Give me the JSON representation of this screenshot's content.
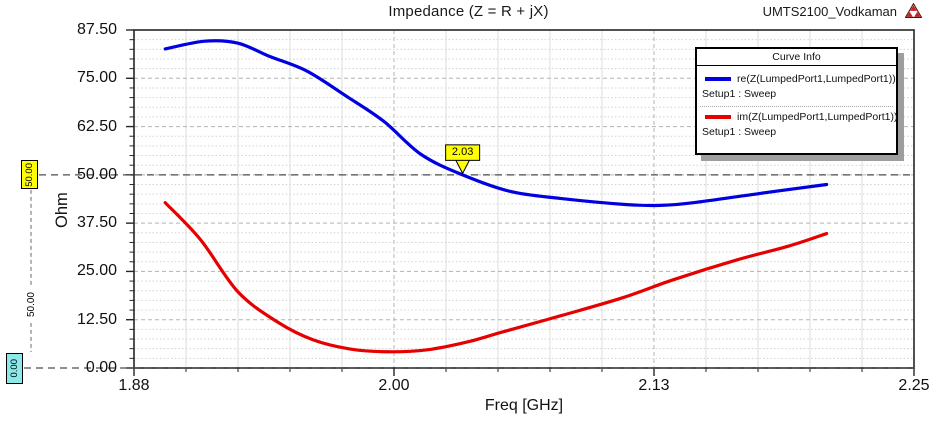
{
  "header": {
    "title": "Impedance (Z = R + jX)",
    "project_name": "UMTS2100_Vodkaman",
    "logo": "ansoft-triangle-logo"
  },
  "legend": {
    "title": "Curve Info",
    "entries": [
      {
        "label": "re(Z(LumpedPort1,LumpedPort1))",
        "sublabel": "Setup1 : Sweep",
        "color": "#0000e0"
      },
      {
        "label": "im(Z(LumpedPort1,LumpedPort1))",
        "sublabel": "Setup1 : Sweep",
        "color": "#e60000"
      }
    ]
  },
  "chart_data": {
    "type": "line",
    "title": "Impedance (Z = R + jX)",
    "xlabel": "Freq [GHz]",
    "ylabel": "Ohm",
    "xlim": [
      1.875,
      2.25
    ],
    "ylim": [
      0,
      87.5
    ],
    "x_tick_values": [
      1.875,
      2.0,
      2.125,
      2.25
    ],
    "x_tick_labels": [
      "1.88",
      "2.00",
      "2.13",
      "2.25"
    ],
    "y_tick_values": [
      0,
      12.5,
      25,
      37.5,
      50,
      62.5,
      75,
      87.5
    ],
    "y_tick_labels": [
      "0.00",
      "12.50",
      "25.00",
      "37.50",
      "50.00",
      "62.50",
      "75.00",
      "87.50"
    ],
    "x_minor_step": 0.025,
    "y_minor_step": 2.5,
    "grid": true,
    "legend_position": "top-right",
    "series": [
      {
        "name": "re(Z(LumpedPort1,LumpedPort1))",
        "color": "#0000e0",
        "x": [
          1.89,
          1.909,
          1.925,
          1.94,
          1.958,
          1.977,
          1.995,
          2.013,
          2.033,
          2.056,
          2.08,
          2.112,
          2.128,
          2.144,
          2.176,
          2.208
        ],
        "y": [
          82.6,
          84.6,
          84.1,
          80.7,
          76.9,
          70.4,
          63.9,
          55.3,
          50.0,
          45.7,
          43.9,
          42.3,
          42.1,
          42.8,
          45.2,
          47.5
        ]
      },
      {
        "name": "im(Z(LumpedPort1,LumpedPort1))",
        "color": "#e60000",
        "x": [
          1.89,
          1.907,
          1.925,
          1.944,
          1.961,
          1.979,
          1.997,
          2.016,
          2.035,
          2.052,
          2.08,
          2.11,
          2.134,
          2.165,
          2.19,
          2.208
        ],
        "y": [
          42.8,
          33.2,
          19.7,
          11.9,
          7.3,
          4.9,
          4.2,
          4.7,
          6.7,
          9.3,
          13.5,
          18.2,
          22.8,
          28.0,
          31.6,
          34.8
        ]
      }
    ],
    "markers": {
      "point": {
        "label": "2.03",
        "x": 2.033,
        "y": 50.0,
        "color": "#ffff00"
      },
      "h_lines": [
        {
          "label": "50.00",
          "value": 50.0,
          "box_color": "#ffff00"
        },
        {
          "label": "0.00",
          "value": 0.0,
          "box_color": "#8ce9e9"
        }
      ],
      "delta_label": "50.00"
    }
  }
}
